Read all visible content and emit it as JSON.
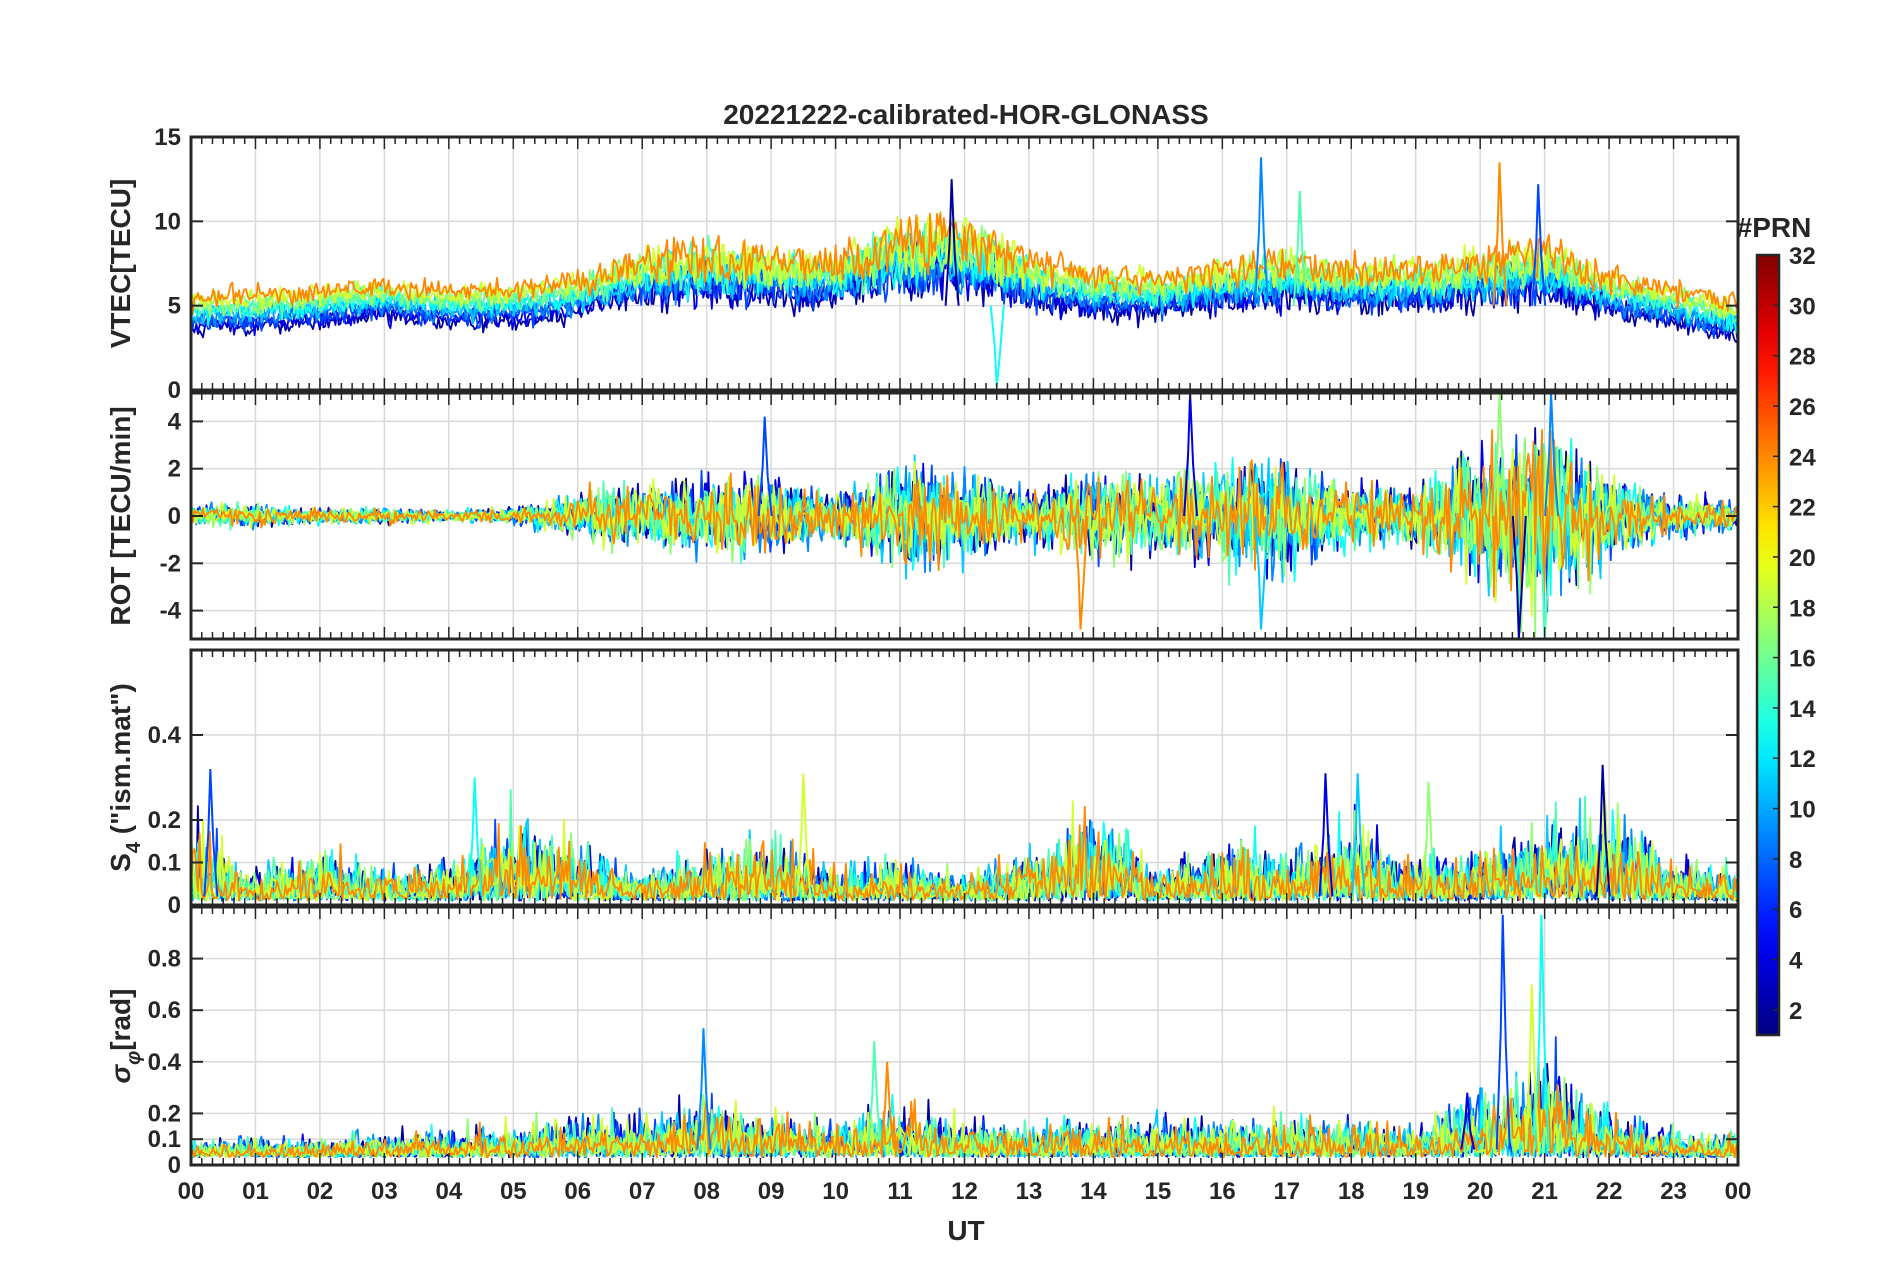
{
  "chart_data": {
    "type": "line",
    "title": "20221222-calibrated-HOR-GLONASS",
    "xlabel": "UT",
    "x_ticks": [
      "00",
      "01",
      "02",
      "03",
      "04",
      "05",
      "06",
      "07",
      "08",
      "09",
      "10",
      "11",
      "12",
      "13",
      "14",
      "15",
      "16",
      "17",
      "18",
      "19",
      "20",
      "21",
      "22",
      "23",
      "00"
    ],
    "x_range_hours": [
      0,
      24
    ],
    "grid": true,
    "colorbar": {
      "title": "#PRN",
      "range": [
        1,
        32
      ],
      "ticks": [
        2,
        4,
        6,
        8,
        10,
        12,
        14,
        16,
        18,
        20,
        22,
        24,
        26,
        28,
        30,
        32
      ],
      "tick_labels": [
        "2",
        "4",
        "6",
        "8",
        "10",
        "12",
        "14",
        "16",
        "18",
        "20",
        "22",
        "24",
        "26",
        "28",
        "30",
        "32"
      ],
      "colormap": "jet",
      "position": "right"
    },
    "panels": [
      {
        "id": "vtec",
        "ylabel": "VTEC[TECU]",
        "ylim": [
          0,
          15
        ],
        "yticks": [
          0,
          5,
          10,
          15
        ],
        "ytick_labels": [
          "0",
          "5",
          "10",
          "15"
        ],
        "baseline": 5,
        "noise": 1.2,
        "envelope_hours": [
          0,
          1,
          2,
          3,
          4,
          5,
          6,
          7,
          8,
          9,
          10,
          11,
          12,
          13,
          14,
          15,
          16,
          17,
          18,
          19,
          20,
          21,
          22,
          23,
          24
        ],
        "envelope_values": [
          4.5,
          4.8,
          5,
          5.5,
          5,
          5.2,
          5.8,
          7,
          7.5,
          7,
          7,
          8.5,
          8.5,
          7,
          6,
          5.8,
          6.5,
          7,
          6.5,
          6.5,
          7,
          7.5,
          6,
          5,
          4
        ],
        "spikes": [
          {
            "hour": 11.8,
            "value": 12.5
          },
          {
            "hour": 16.6,
            "value": 13.8
          },
          {
            "hour": 17.2,
            "value": 11.8
          },
          {
            "hour": 20.3,
            "value": 13.5
          },
          {
            "hour": 20.9,
            "value": 12.2
          },
          {
            "hour": 12.5,
            "value": 0.2
          }
        ]
      },
      {
        "id": "rot",
        "ylabel": "ROT [TECU/min]",
        "ylim": [
          -5.2,
          5.2
        ],
        "yticks": [
          -4,
          -2,
          0,
          2,
          4
        ],
        "ytick_labels": [
          "-4",
          "-2",
          "0",
          "2",
          "4"
        ],
        "baseline": 0,
        "noise": 1.0,
        "envelope_hours": [
          0,
          1,
          2,
          3,
          4,
          5,
          6,
          7,
          8,
          9,
          10,
          11,
          12,
          13,
          14,
          15,
          16,
          17,
          18,
          19,
          20,
          21,
          22,
          23,
          24
        ],
        "envelope_values": [
          0.4,
          0.4,
          0.3,
          0.3,
          0.2,
          0.3,
          0.8,
          1.2,
          1.4,
          1.4,
          0.8,
          2,
          1.5,
          1,
          1.6,
          1.4,
          1.8,
          2,
          1.2,
          1,
          2.5,
          3.5,
          1.5,
          0.8,
          0.5
        ],
        "spikes": [
          {
            "hour": 15.5,
            "value": 5.2
          },
          {
            "hour": 16.6,
            "value": -4.8
          },
          {
            "hour": 20.3,
            "value": 5.2
          },
          {
            "hour": 20.6,
            "value": -5.2
          },
          {
            "hour": 21.1,
            "value": 5.2
          },
          {
            "hour": 21.0,
            "value": -5.2
          },
          {
            "hour": 13.8,
            "value": -4.8
          },
          {
            "hour": 8.9,
            "value": 4.2
          }
        ]
      },
      {
        "id": "s4",
        "ylabel": "S4 (\"ism.mat\")",
        "ylabel_main": "S",
        "ylabel_sub": "4",
        "ylabel_rest": " (\"ism.mat\")",
        "ylim": [
          0,
          0.6
        ],
        "yticks": [
          0,
          0.1,
          0.2,
          0.4
        ],
        "ytick_labels": [
          "0",
          "0.1",
          "0.2",
          "0.4"
        ],
        "baseline": 0.02,
        "noise": 0.03,
        "envelope_hours": [
          0,
          1,
          2,
          3,
          4,
          5,
          6,
          7,
          8,
          9,
          10,
          11,
          12,
          13,
          14,
          15,
          16,
          17,
          18,
          19,
          20,
          21,
          22,
          23,
          24
        ],
        "envelope_values": [
          0.15,
          0.06,
          0.1,
          0.06,
          0.08,
          0.15,
          0.12,
          0.05,
          0.1,
          0.12,
          0.06,
          0.08,
          0.05,
          0.1,
          0.2,
          0.06,
          0.12,
          0.1,
          0.15,
          0.08,
          0.1,
          0.15,
          0.2,
          0.08,
          0.06
        ],
        "spikes": [
          {
            "hour": 0.3,
            "value": 0.32
          },
          {
            "hour": 4.4,
            "value": 0.3
          },
          {
            "hour": 9.5,
            "value": 0.31
          },
          {
            "hour": 17.6,
            "value": 0.31
          },
          {
            "hour": 18.1,
            "value": 0.31
          },
          {
            "hour": 19.2,
            "value": 0.29
          },
          {
            "hour": 21.9,
            "value": 0.33
          }
        ]
      },
      {
        "id": "sigma",
        "ylabel": "σφ[rad]",
        "ylabel_main": "σ",
        "ylabel_sub": "φ",
        "ylabel_rest": "[rad]",
        "ylim": [
          0,
          1
        ],
        "yticks": [
          0,
          0.1,
          0.2,
          0.4,
          0.6,
          0.8
        ],
        "ytick_labels": [
          "0",
          "0.1",
          "0.2",
          "0.4",
          "0.6",
          "0.8"
        ],
        "baseline": 0.06,
        "noise": 0.05,
        "envelope_hours": [
          0,
          1,
          2,
          3,
          4,
          5,
          6,
          7,
          8,
          9,
          10,
          11,
          12,
          13,
          14,
          15,
          16,
          17,
          18,
          19,
          20,
          21,
          22,
          23,
          24
        ],
        "envelope_values": [
          0.06,
          0.06,
          0.06,
          0.08,
          0.08,
          0.1,
          0.12,
          0.14,
          0.2,
          0.14,
          0.12,
          0.16,
          0.12,
          0.1,
          0.12,
          0.12,
          0.12,
          0.12,
          0.12,
          0.1,
          0.2,
          0.3,
          0.15,
          0.08,
          0.08
        ],
        "spikes": [
          {
            "hour": 7.95,
            "value": 0.53
          },
          {
            "hour": 10.6,
            "value": 0.48
          },
          {
            "hour": 10.8,
            "value": 0.4
          },
          {
            "hour": 20.35,
            "value": 0.97
          },
          {
            "hour": 20.95,
            "value": 0.97
          },
          {
            "hour": 20.8,
            "value": 0.7
          },
          {
            "hour": 19.8,
            "value": 0.28
          }
        ]
      }
    ]
  }
}
